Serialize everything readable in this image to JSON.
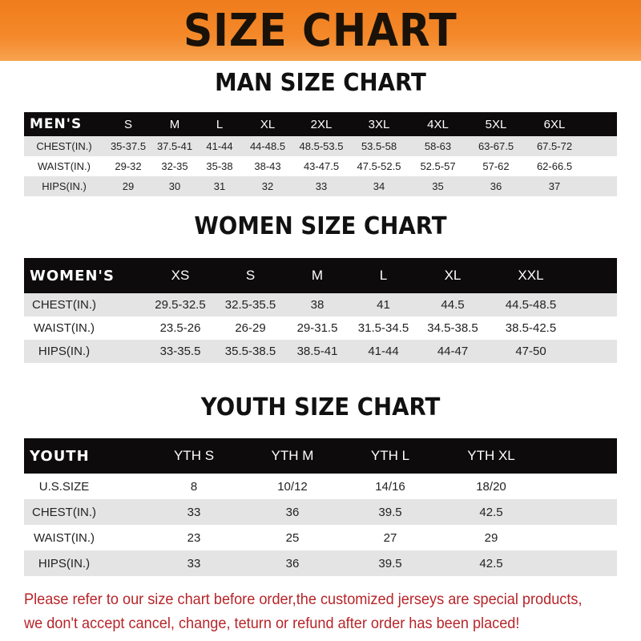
{
  "banner": "SIZE CHART",
  "tables": [
    {
      "id": "men",
      "title": "MAN SIZE CHART",
      "header": [
        "MEN'S",
        "S",
        "M",
        "L",
        "XL",
        "2XL",
        "3XL",
        "4XL",
        "5XL",
        "6XL"
      ],
      "rows": [
        [
          "CHEST(IN.)",
          "35-37.5",
          "37.5-41",
          "41-44",
          "44-48.5",
          "48.5-53.5",
          "53.5-58",
          "58-63",
          "63-67.5",
          "67.5-72"
        ],
        [
          "WAIST(IN.)",
          "29-32",
          "32-35",
          "35-38",
          "38-43",
          "43-47.5",
          "47.5-52.5",
          "52.5-57",
          "57-62",
          "62-66.5"
        ],
        [
          "HIPS(IN.)",
          "29",
          "30",
          "31",
          "32",
          "33",
          "34",
          "35",
          "36",
          "37"
        ]
      ]
    },
    {
      "id": "women",
      "title": "WOMEN SIZE CHART",
      "header": [
        "WOMEN'S",
        "XS",
        "S",
        "M",
        "L",
        "XL",
        "XXL"
      ],
      "rows": [
        [
          "CHEST(IN.)",
          "29.5-32.5",
          "32.5-35.5",
          "38",
          "41",
          "44.5",
          "44.5-48.5"
        ],
        [
          "WAIST(IN.)",
          "23.5-26",
          "26-29",
          "29-31.5",
          "31.5-34.5",
          "34.5-38.5",
          "38.5-42.5"
        ],
        [
          "HIPS(IN.)",
          "33-35.5",
          "35.5-38.5",
          "38.5-41",
          "41-44",
          "44-47",
          "47-50"
        ]
      ]
    },
    {
      "id": "youth",
      "title": "YOUTH SIZE CHART",
      "header": [
        "YOUTH",
        "YTH S",
        "YTH M",
        "YTH L",
        "YTH XL"
      ],
      "rows": [
        [
          "U.S.SIZE",
          "8",
          "10/12",
          "14/16",
          "18/20"
        ],
        [
          "CHEST(IN.)",
          "33",
          "36",
          "39.5",
          "42.5"
        ],
        [
          "WAIST(IN.)",
          "23",
          "25",
          "27",
          "29"
        ],
        [
          "HIPS(IN.)",
          "33",
          "36",
          "39.5",
          "42.5"
        ]
      ]
    }
  ],
  "footer": {
    "line1": "Please refer to our size chart before order,the customized jerseys are special products,",
    "line2": "we don't accept cancel, change, teturn or refund after order has been placed!"
  },
  "colors": {
    "banner": "#f4892a",
    "header_row": "#0d0b0b",
    "shaded_row": "#e4e4e4",
    "footer_text": "#b7252a"
  }
}
